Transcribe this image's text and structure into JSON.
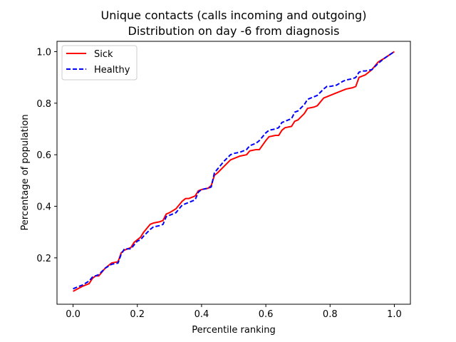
{
  "chart_data": {
    "type": "line",
    "title": "Unique contacts (calls incoming and outgoing)",
    "subtitle": "Distribution on day -6 from diagnosis",
    "xlabel": "Percentile ranking",
    "ylabel": "Percentage of population",
    "xlim": [
      -0.05,
      1.05
    ],
    "ylim": [
      0.02,
      1.04
    ],
    "xticks": [
      0.0,
      0.2,
      0.4,
      0.6,
      0.8,
      1.0
    ],
    "xtick_labels": [
      "0.0",
      "0.2",
      "0.4",
      "0.6",
      "0.8",
      "1.0"
    ],
    "yticks": [
      0.2,
      0.4,
      0.6,
      0.8,
      1.0
    ],
    "ytick_labels": [
      "0.2",
      "0.4",
      "0.6",
      "0.8",
      "1.0"
    ],
    "grid": false,
    "legend_position": "top-left",
    "series": [
      {
        "name": "Sick",
        "color": "#ff0000",
        "style": "solid",
        "x": [
          0.0,
          0.03,
          0.05,
          0.06,
          0.07,
          0.08,
          0.1,
          0.12,
          0.14,
          0.15,
          0.16,
          0.18,
          0.19,
          0.2,
          0.21,
          0.22,
          0.24,
          0.25,
          0.27,
          0.28,
          0.29,
          0.3,
          0.32,
          0.34,
          0.35,
          0.36,
          0.38,
          0.39,
          0.4,
          0.42,
          0.43,
          0.44,
          0.45,
          0.47,
          0.49,
          0.5,
          0.52,
          0.54,
          0.55,
          0.57,
          0.58,
          0.6,
          0.61,
          0.63,
          0.64,
          0.65,
          0.66,
          0.68,
          0.69,
          0.7,
          0.72,
          0.73,
          0.75,
          0.76,
          0.78,
          0.79,
          0.8,
          0.82,
          0.84,
          0.85,
          0.87,
          0.88,
          0.89,
          0.9,
          0.91,
          0.93,
          0.95,
          0.97,
          1.0
        ],
        "y": [
          0.07,
          0.09,
          0.1,
          0.12,
          0.13,
          0.13,
          0.16,
          0.18,
          0.185,
          0.22,
          0.23,
          0.24,
          0.26,
          0.27,
          0.28,
          0.3,
          0.33,
          0.335,
          0.34,
          0.345,
          0.37,
          0.375,
          0.39,
          0.42,
          0.43,
          0.43,
          0.44,
          0.46,
          0.465,
          0.47,
          0.48,
          0.52,
          0.53,
          0.555,
          0.58,
          0.585,
          0.595,
          0.6,
          0.615,
          0.62,
          0.62,
          0.655,
          0.67,
          0.675,
          0.675,
          0.695,
          0.705,
          0.71,
          0.73,
          0.735,
          0.76,
          0.78,
          0.785,
          0.79,
          0.82,
          0.825,
          0.83,
          0.84,
          0.85,
          0.855,
          0.86,
          0.865,
          0.9,
          0.905,
          0.91,
          0.93,
          0.96,
          0.975,
          1.0
        ]
      },
      {
        "name": "Healthy",
        "color": "#0000ff",
        "style": "dashed",
        "x": [
          0.0,
          0.03,
          0.05,
          0.06,
          0.07,
          0.08,
          0.1,
          0.12,
          0.14,
          0.15,
          0.16,
          0.18,
          0.19,
          0.2,
          0.21,
          0.22,
          0.24,
          0.25,
          0.27,
          0.28,
          0.29,
          0.3,
          0.32,
          0.34,
          0.35,
          0.36,
          0.38,
          0.39,
          0.4,
          0.42,
          0.43,
          0.44,
          0.45,
          0.47,
          0.49,
          0.5,
          0.52,
          0.54,
          0.55,
          0.57,
          0.58,
          0.6,
          0.61,
          0.63,
          0.64,
          0.65,
          0.66,
          0.68,
          0.69,
          0.7,
          0.72,
          0.73,
          0.75,
          0.76,
          0.78,
          0.79,
          0.8,
          0.82,
          0.84,
          0.85,
          0.87,
          0.88,
          0.89,
          0.9,
          0.91,
          0.93,
          0.95,
          0.97,
          1.0
        ],
        "y": [
          0.08,
          0.095,
          0.11,
          0.125,
          0.13,
          0.135,
          0.16,
          0.175,
          0.18,
          0.215,
          0.235,
          0.235,
          0.25,
          0.265,
          0.27,
          0.285,
          0.31,
          0.32,
          0.325,
          0.33,
          0.36,
          0.365,
          0.375,
          0.405,
          0.41,
          0.415,
          0.425,
          0.455,
          0.465,
          0.47,
          0.475,
          0.53,
          0.545,
          0.575,
          0.6,
          0.605,
          0.61,
          0.62,
          0.635,
          0.645,
          0.655,
          0.685,
          0.695,
          0.7,
          0.705,
          0.725,
          0.73,
          0.74,
          0.765,
          0.77,
          0.795,
          0.815,
          0.825,
          0.83,
          0.855,
          0.865,
          0.865,
          0.87,
          0.885,
          0.89,
          0.895,
          0.9,
          0.92,
          0.925,
          0.925,
          0.93,
          0.955,
          0.975,
          1.0
        ]
      }
    ]
  }
}
